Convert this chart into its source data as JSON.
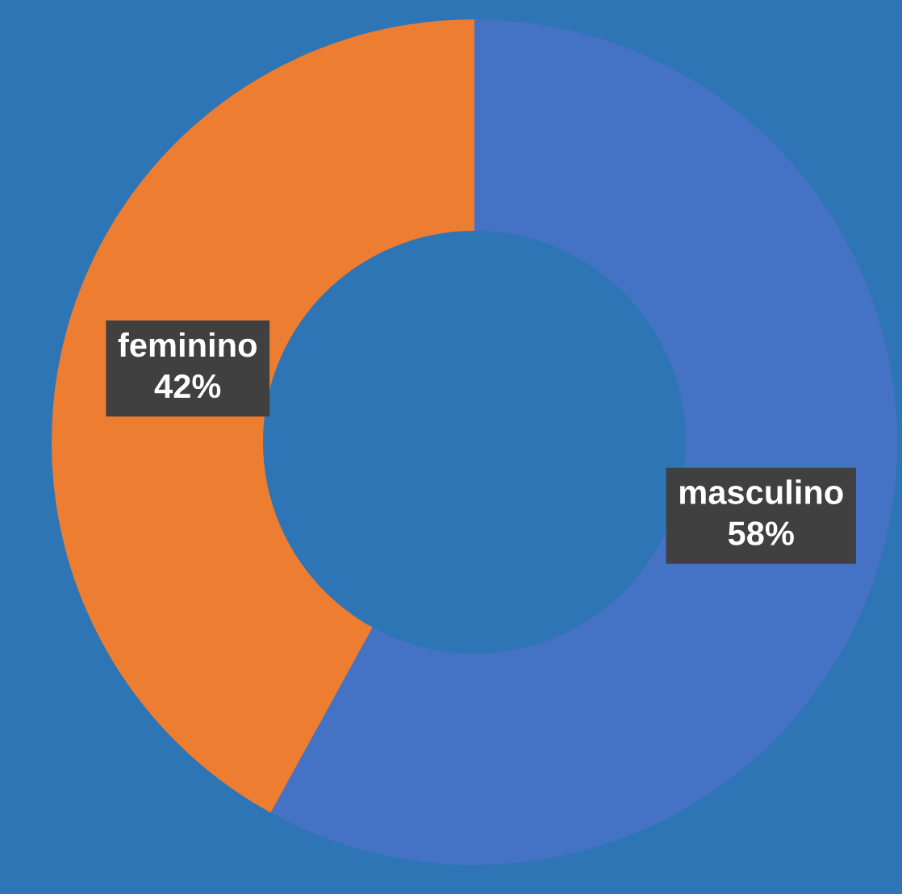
{
  "chart_data": {
    "type": "donut",
    "categories": [
      "masculino",
      "feminino"
    ],
    "values": [
      58,
      42
    ],
    "colors": [
      "#4472c4",
      "#ed7d31"
    ],
    "value_labels": [
      "58%",
      "42%"
    ],
    "legend": false
  }
}
